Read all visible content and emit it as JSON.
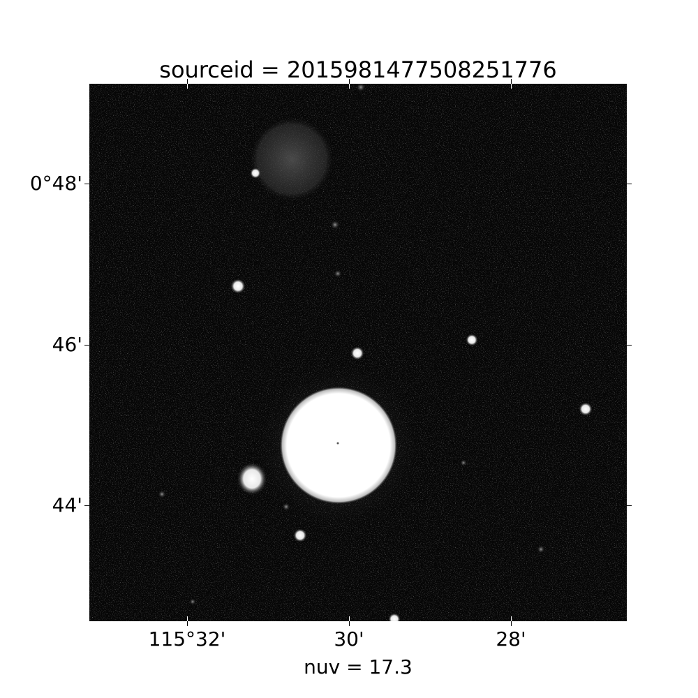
{
  "title": "sourceid = 2015981477508251776",
  "x_ticks": [
    "115°32'",
    "30'",
    "28'"
  ],
  "y_ticks": [
    "0°48'",
    "46'",
    "44'"
  ],
  "caption": "nuv = 17.3"
}
